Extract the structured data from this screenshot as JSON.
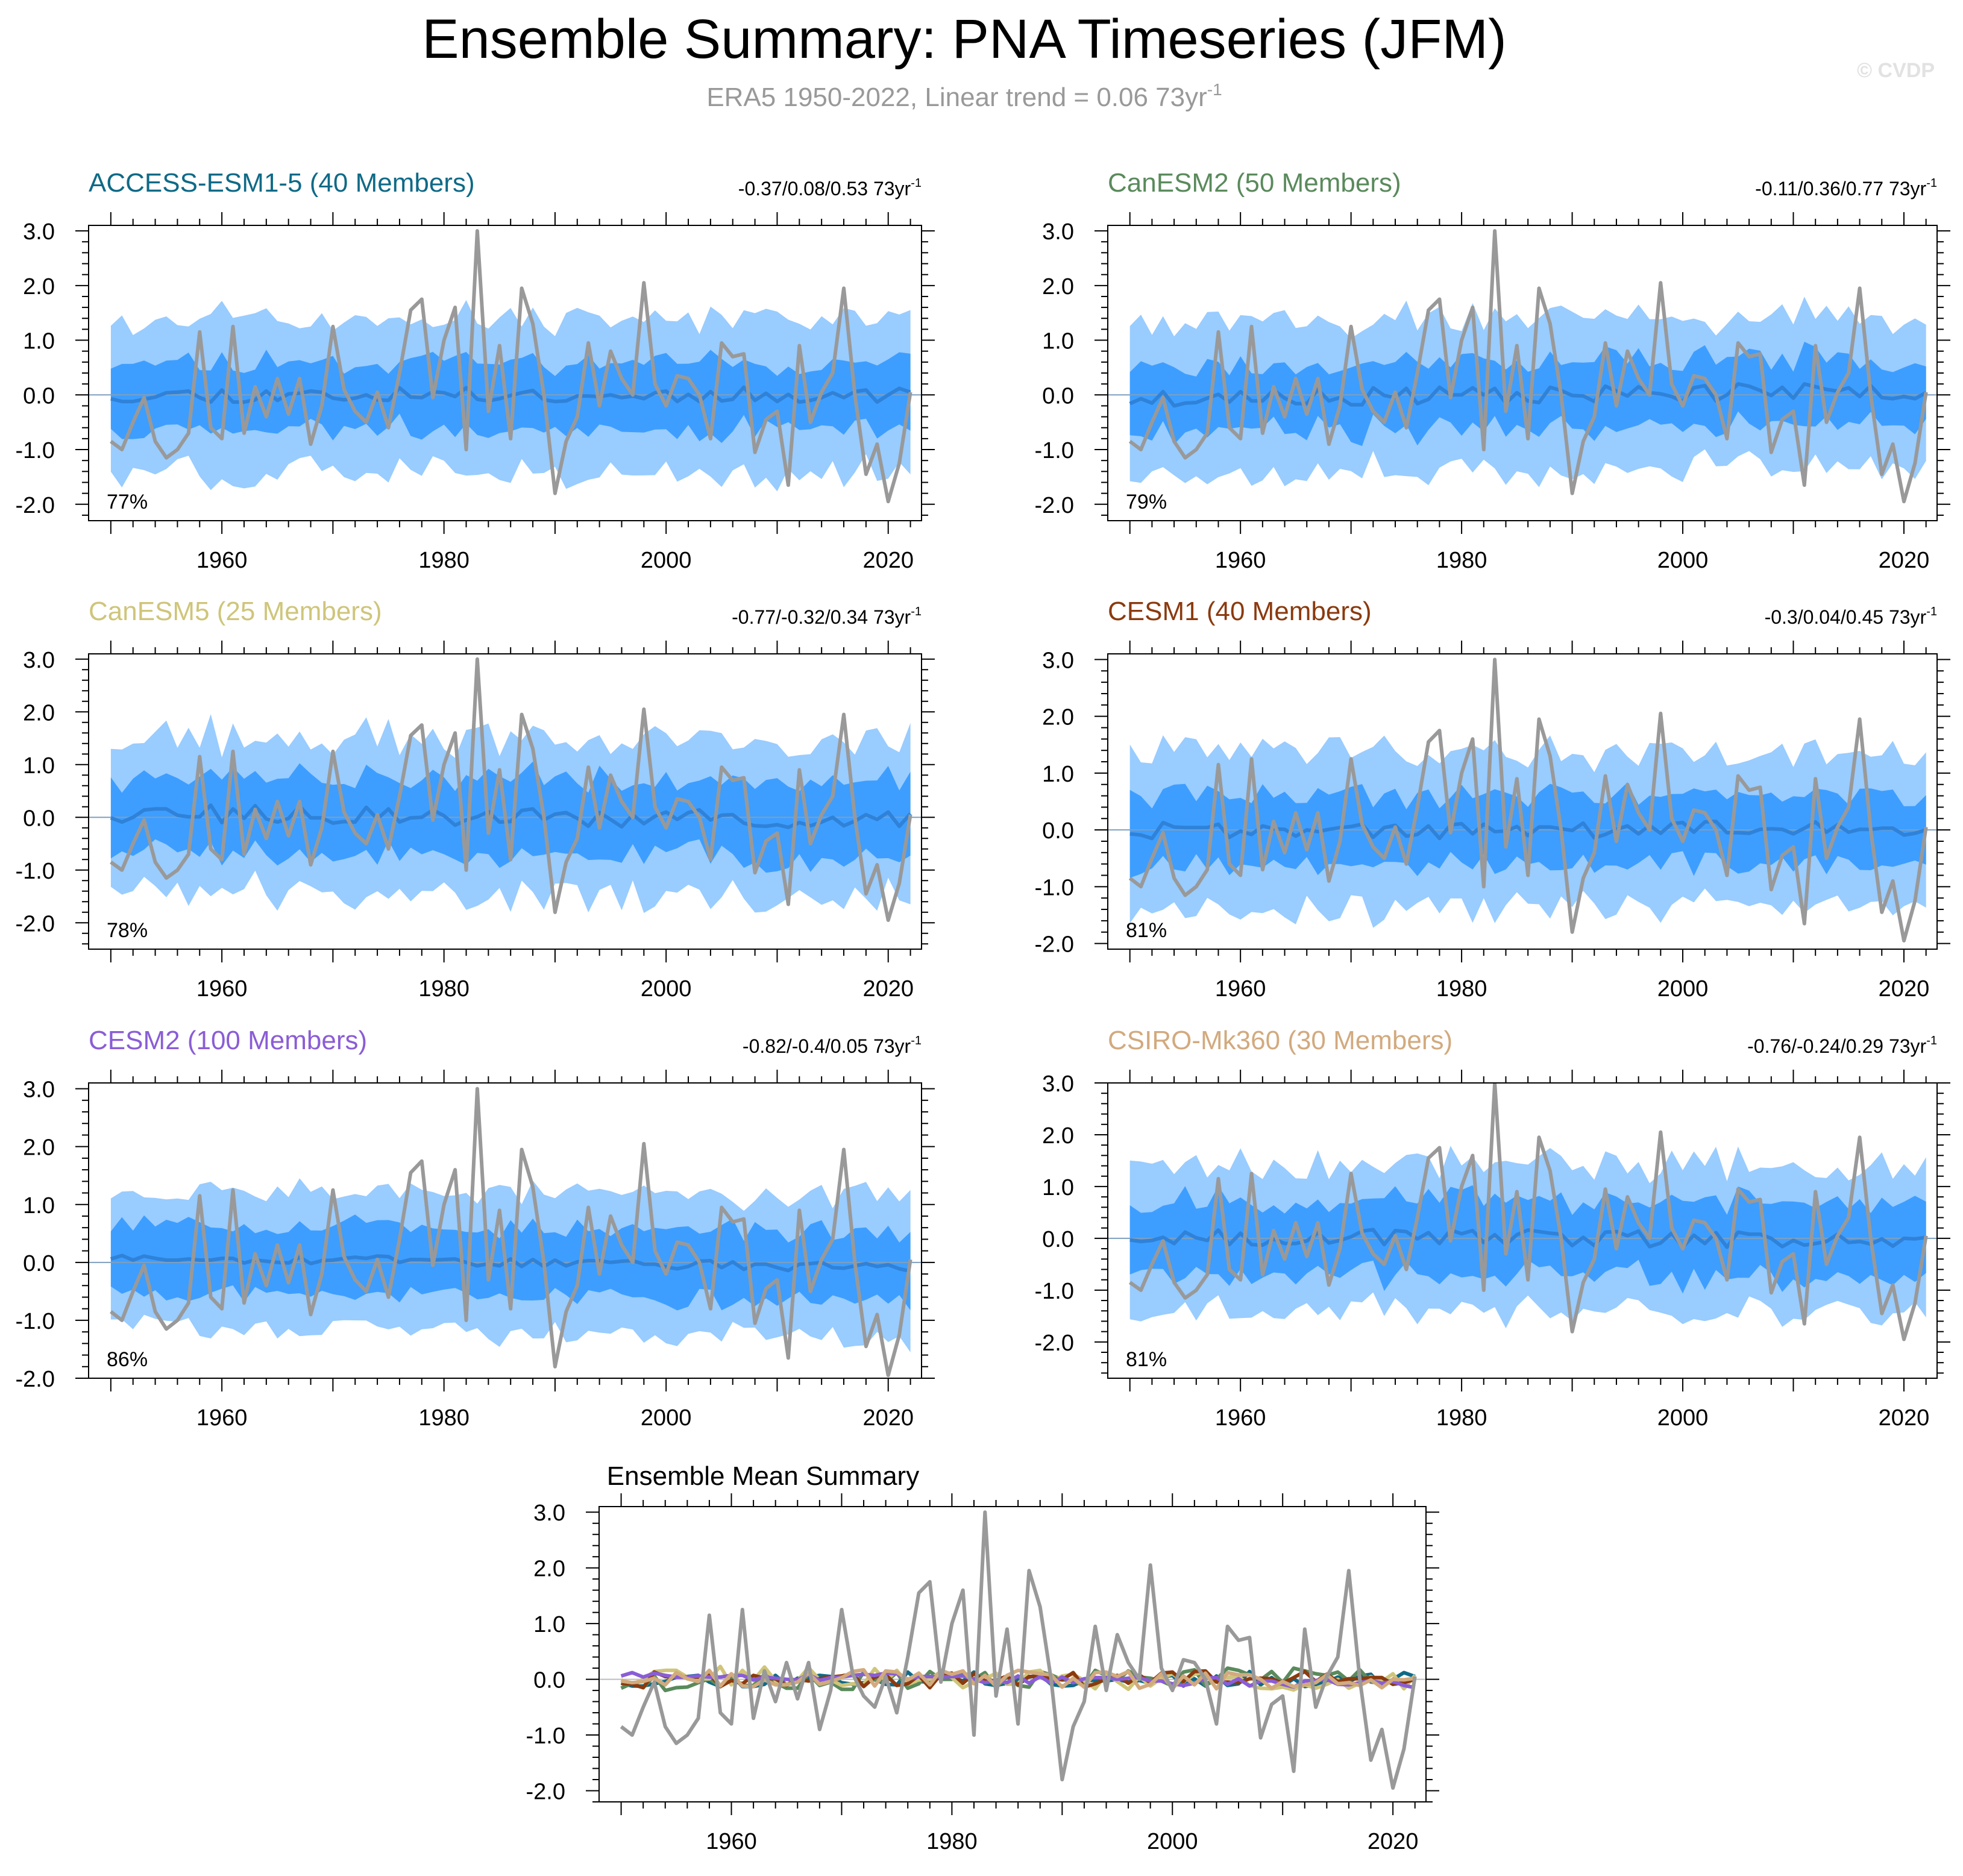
{
  "header": {
    "title": "Ensemble Summary: PNA Timeseries (JFM)",
    "subtitle": "ERA5 1950-2022, Linear trend = 0.06 73yr",
    "subtitle_sup": "-1",
    "watermark": "© CVDP"
  },
  "colors": {
    "obs": "#999999",
    "band_outer": "#99ccff",
    "band_inner": "#3d9eff",
    "ens_mean": "#2f82d8"
  },
  "chart_data": [
    {
      "id": "access",
      "type": "area",
      "title": "ACCESS-ESM1-5 (40 Members)",
      "title_color": "#0f6a87",
      "trend_text": "-0.37/0.08/0.53 73yr",
      "trend_sup": "-1",
      "pct_label": "77%",
      "xlim": [
        1948,
        2023
      ],
      "ylim": [
        -2.3,
        3.1
      ],
      "x_ticks": [
        1960,
        1980,
        2000,
        2020
      ],
      "y_ticks": [
        -2.0,
        -1.0,
        0.0,
        1.0,
        2.0,
        3.0
      ],
      "y_tick_labels": [
        "-2.0",
        "-1.0",
        "0.0",
        "1.0",
        "2.0",
        "3.0"
      ],
      "seed": 11,
      "mean_amp": 0.14,
      "mean_trend": 0.0,
      "inner_w": 0.62,
      "outer_w": 1.42
    },
    {
      "id": "canesm2",
      "type": "area",
      "title": "CanESM2 (50 Members)",
      "title_color": "#5a8a5c",
      "trend_text": "-0.11/0.36/0.77 73yr",
      "trend_sup": "-1",
      "pct_label": "79%",
      "xlim": [
        1948,
        2023
      ],
      "ylim": [
        -2.3,
        3.1
      ],
      "x_ticks": [
        1960,
        1980,
        2000,
        2020
      ],
      "y_ticks": [
        -2.0,
        -1.0,
        0.0,
        1.0,
        2.0,
        3.0
      ],
      "y_tick_labels": [
        "-2.0",
        "-1.0",
        "0.0",
        "1.0",
        "2.0",
        "3.0"
      ],
      "seed": 23,
      "mean_amp": 0.16,
      "mean_trend": 0.3,
      "inner_w": 0.62,
      "outer_w": 1.4
    },
    {
      "id": "canesm5",
      "type": "area",
      "title": "CanESM5 (25 Members)",
      "title_color": "#cfc57a",
      "trend_text": "-0.77/-0.32/0.34 73yr",
      "trend_sup": "-1",
      "pct_label": "78%",
      "xlim": [
        1948,
        2023
      ],
      "ylim": [
        -2.5,
        3.1
      ],
      "x_ticks": [
        1960,
        1980,
        2000,
        2020
      ],
      "y_ticks": [
        -2.0,
        -1.0,
        0.0,
        1.0,
        2.0,
        3.0
      ],
      "y_tick_labels": [
        "-2.0",
        "-1.0",
        "0.0",
        "1.0",
        "2.0",
        "3.0"
      ],
      "seed": 37,
      "mean_amp": 0.18,
      "mean_trend": -0.3,
      "inner_w": 0.72,
      "outer_w": 1.5
    },
    {
      "id": "cesm1",
      "type": "area",
      "title": "CESM1 (40 Members)",
      "title_color": "#8b3a0e",
      "trend_text": "-0.3/0.04/0.45 73yr",
      "trend_sup": "-1",
      "pct_label": "81%",
      "xlim": [
        1948,
        2023
      ],
      "ylim": [
        -2.1,
        3.1
      ],
      "x_ticks": [
        1960,
        1980,
        2000,
        2020
      ],
      "y_ticks": [
        -2.0,
        -1.0,
        0.0,
        1.0,
        2.0,
        3.0
      ],
      "y_tick_labels": [
        "-2.0",
        "-1.0",
        "0.0",
        "1.0",
        "2.0",
        "3.0"
      ],
      "seed": 41,
      "mean_amp": 0.15,
      "mean_trend": 0.0,
      "inner_w": 0.62,
      "outer_w": 1.4
    },
    {
      "id": "cesm2",
      "type": "area",
      "title": "CESM2 (100 Members)",
      "title_color": "#8a5dd6",
      "trend_text": "-0.82/-0.4/0.05 73yr",
      "trend_sup": "-1",
      "pct_label": "86%",
      "xlim": [
        1948,
        2023
      ],
      "ylim": [
        -2.0,
        3.1
      ],
      "x_ticks": [
        1960,
        1980,
        2000,
        2020
      ],
      "y_ticks": [
        -2.0,
        -1.0,
        0.0,
        1.0,
        2.0,
        3.0
      ],
      "y_tick_labels": [
        "-2.0",
        "-1.0",
        "0.0",
        "1.0",
        "2.0",
        "3.0"
      ],
      "seed": 53,
      "mean_amp": 0.08,
      "mean_trend": -0.4,
      "inner_w": 0.6,
      "outer_w": 1.22
    },
    {
      "id": "csiro",
      "type": "area",
      "title": "CSIRO-Mk360 (30 Members)",
      "title_color": "#d2aa7e",
      "trend_text": "-0.76/-0.24/0.29 73yr",
      "trend_sup": "-1",
      "pct_label": "81%",
      "xlim": [
        1948,
        2023
      ],
      "ylim": [
        -2.7,
        3.0
      ],
      "x_ticks": [
        1960,
        1980,
        2000,
        2020
      ],
      "y_ticks": [
        -2.0,
        -1.0,
        0.0,
        1.0,
        2.0,
        3.0
      ],
      "y_tick_labels": [
        "-2.0",
        "-1.0",
        "0.0",
        "1.0",
        "2.0",
        "3.0"
      ],
      "seed": 67,
      "mean_amp": 0.16,
      "mean_trend": -0.2,
      "inner_w": 0.72,
      "outer_w": 1.45
    },
    {
      "id": "summary",
      "type": "line",
      "title": "Ensemble Mean Summary",
      "title_color": "#000000",
      "xlim": [
        1948,
        2023
      ],
      "ylim": [
        -2.2,
        3.1
      ],
      "x_ticks": [
        1960,
        1980,
        2000,
        2020
      ],
      "y_ticks": [
        -2.0,
        -1.0,
        0.0,
        1.0,
        2.0,
        3.0
      ],
      "y_tick_labels": [
        "-2.0",
        "-1.0",
        "0.0",
        "1.0",
        "2.0",
        "3.0"
      ],
      "series_colors": [
        "#0f6a87",
        "#5a8a5c",
        "#cfc57a",
        "#8b3a0e",
        "#8a5dd6",
        "#d2aa7e"
      ]
    }
  ],
  "observed": {
    "years": [
      1950,
      1951,
      1952,
      1953,
      1954,
      1955,
      1956,
      1957,
      1958,
      1959,
      1960,
      1961,
      1962,
      1963,
      1964,
      1965,
      1966,
      1967,
      1968,
      1969,
      1970,
      1971,
      1972,
      1973,
      1974,
      1975,
      1976,
      1977,
      1978,
      1979,
      1980,
      1981,
      1982,
      1983,
      1984,
      1985,
      1986,
      1987,
      1988,
      1989,
      1990,
      1991,
      1992,
      1993,
      1994,
      1995,
      1996,
      1997,
      1998,
      1999,
      2000,
      2001,
      2002,
      2003,
      2004,
      2005,
      2006,
      2007,
      2008,
      2009,
      2010,
      2011,
      2012,
      2013,
      2014,
      2015,
      2016,
      2017,
      2018,
      2019,
      2020,
      2021,
      2022
    ],
    "values": [
      -0.85,
      -1.0,
      -0.5,
      -0.05,
      -0.85,
      -1.15,
      -1.0,
      -0.7,
      1.15,
      -0.6,
      -0.8,
      1.25,
      -0.7,
      0.15,
      -0.4,
      0.3,
      -0.35,
      0.3,
      -0.9,
      -0.2,
      1.25,
      0.1,
      -0.3,
      -0.5,
      0.05,
      -0.6,
      0.4,
      1.55,
      1.75,
      -0.05,
      1.0,
      1.6,
      -1.0,
      3.0,
      -0.3,
      0.9,
      -0.8,
      1.95,
      1.3,
      0.0,
      -1.8,
      -0.85,
      -0.4,
      0.95,
      -0.2,
      0.8,
      0.3,
      0.0,
      2.05,
      0.2,
      -0.2,
      0.35,
      0.3,
      0.0,
      -0.8,
      0.95,
      0.7,
      0.75,
      -1.05,
      -0.45,
      -0.3,
      -1.65,
      0.9,
      -0.5,
      0.05,
      0.4,
      1.95,
      0.0,
      -1.45,
      -0.9,
      -1.95,
      -1.25,
      0.05
    ]
  }
}
